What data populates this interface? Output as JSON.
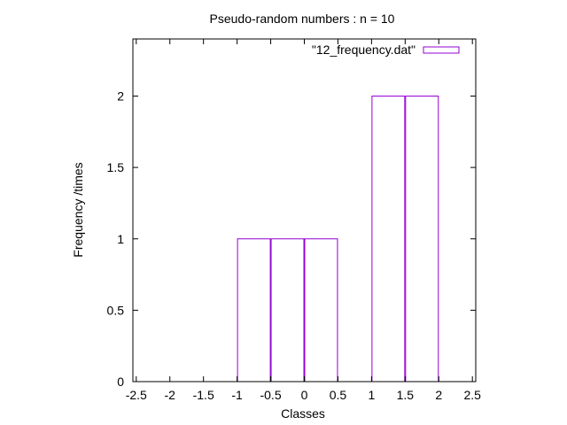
{
  "chart_data": {
    "type": "bar",
    "title": "Pseudo-random numbers : n = 10",
    "xlabel": "Classes",
    "ylabel": "Frequency /times",
    "legend": {
      "label": "\"12_frequency.dat\"",
      "placement": "top-right"
    },
    "xlim": [
      -2.55,
      2.55
    ],
    "ylim": [
      0,
      2.4
    ],
    "xticks": [
      -2.5,
      -2,
      -1.5,
      -1,
      -0.5,
      0,
      0.5,
      1,
      1.5,
      2,
      2.5
    ],
    "xtick_labels": [
      "-2.5",
      "-2",
      "-1.5",
      "-1",
      "-0.5",
      "0",
      "0.5",
      "1",
      "1.5",
      "2",
      "2.5"
    ],
    "yticks": [
      0,
      0.5,
      1,
      1.5,
      2
    ],
    "ytick_labels": [
      "0",
      "0.5",
      "1",
      "1.5",
      "2"
    ],
    "bar_width": 0.5,
    "bars": [
      {
        "x": -0.75,
        "value": 1
      },
      {
        "x": -0.25,
        "value": 1
      },
      {
        "x": 0.25,
        "value": 1
      },
      {
        "x": 1.25,
        "value": 2
      },
      {
        "x": 1.75,
        "value": 2
      }
    ],
    "bar_color": "#9400d3",
    "grid": false
  }
}
